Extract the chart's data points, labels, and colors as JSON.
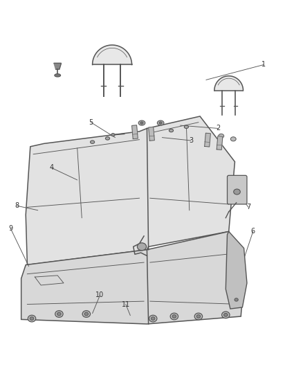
{
  "bg_color": "#ffffff",
  "line_color": "#555555",
  "label_color": "#333333",
  "fig_width": 4.38,
  "fig_height": 5.33,
  "dpi": 100,
  "annotations": [
    [
      "1",
      [
        0.87,
        0.895
      ],
      [
        0.68,
        0.845
      ]
    ],
    [
      "2",
      [
        0.72,
        0.685
      ],
      [
        0.595,
        0.695
      ]
    ],
    [
      "3",
      [
        0.63,
        0.645
      ],
      [
        0.535,
        0.655
      ]
    ],
    [
      "4",
      [
        0.17,
        0.555
      ],
      [
        0.255,
        0.515
      ]
    ],
    [
      "5",
      [
        0.3,
        0.705
      ],
      [
        0.38,
        0.655
      ]
    ],
    [
      "6",
      [
        0.835,
        0.345
      ],
      [
        0.795,
        0.225
      ]
    ],
    [
      "7",
      [
        0.82,
        0.425
      ],
      [
        0.79,
        0.465
      ]
    ],
    [
      "8",
      [
        0.055,
        0.43
      ],
      [
        0.125,
        0.415
      ]
    ],
    [
      "9",
      [
        0.035,
        0.355
      ],
      [
        0.095,
        0.23
      ]
    ],
    [
      "10",
      [
        0.33,
        0.135
      ],
      [
        0.305,
        0.075
      ]
    ],
    [
      "11",
      [
        0.415,
        0.105
      ],
      [
        0.43,
        0.068
      ]
    ]
  ]
}
